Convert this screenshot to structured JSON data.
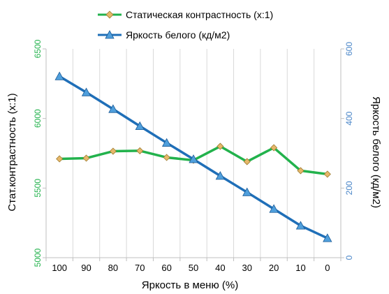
{
  "colors": {
    "contrast_line": "#22b24c",
    "contrast_marker_fill": "#e6b86a",
    "contrast_marker_stroke": "#9c7a2e",
    "brightness_line": "#1f6fb8",
    "brightness_marker_fill": "#4f9fdc",
    "brightness_marker_stroke": "#1a5a96",
    "left_axis_text": "#22b24c",
    "right_axis_text": "#4a86c8",
    "grid": "#d9d9d9",
    "axis_text": "#000000"
  },
  "chart_data": {
    "type": "line",
    "x": [
      100,
      90,
      80,
      70,
      60,
      50,
      40,
      30,
      20,
      10,
      0
    ],
    "xlabel": "Яркость в меню (%)",
    "ylabel_left": "Стат.контрастность  (x:1)",
    "ylabel_right": "Яркость белого (кд/м2)",
    "ylim_left": [
      5000,
      6500
    ],
    "yticks_left": [
      5000,
      5500,
      6000,
      6500
    ],
    "ylim_right": [
      0,
      600
    ],
    "yticks_right": [
      0,
      200,
      400,
      600
    ],
    "grid": "vertical",
    "legend_position": "top",
    "series": [
      {
        "name": "Статическая контрастность (x:1)",
        "axis": "left",
        "values": [
          5710,
          5715,
          5765,
          5768,
          5720,
          5700,
          5800,
          5690,
          5790,
          5625,
          5600
        ]
      },
      {
        "name": "Яркость белого (кд/м2)",
        "axis": "right",
        "values": [
          521,
          475,
          427,
          378,
          330,
          283,
          235,
          188,
          140,
          92,
          56
        ]
      }
    ]
  }
}
